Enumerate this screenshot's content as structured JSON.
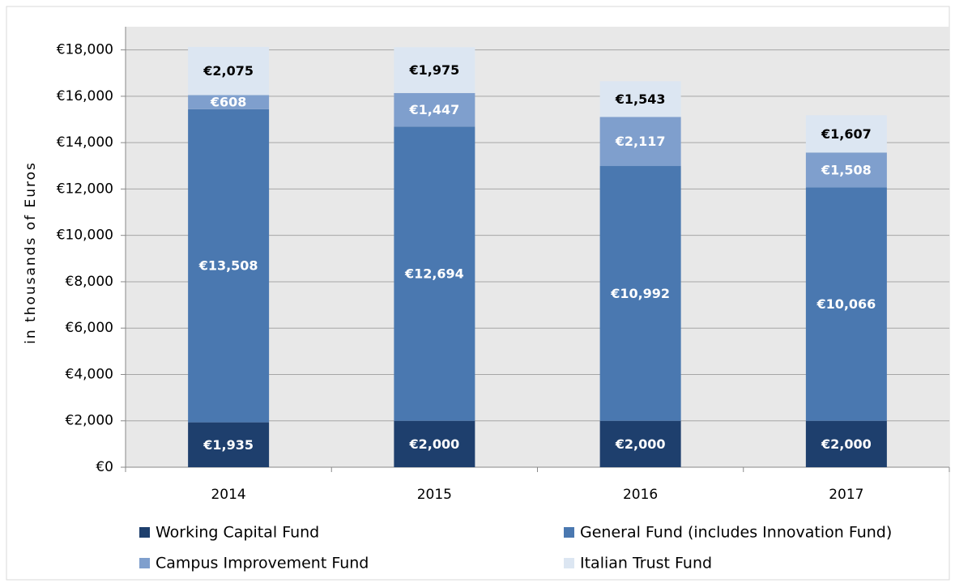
{
  "chart_data": {
    "type": "stacked_bar",
    "y_label": "in thousands of Euros",
    "categories": [
      "2014",
      "2015",
      "2016",
      "2017"
    ],
    "series": [
      {
        "name": "Working Capital Fund",
        "color": "#1e3f6d",
        "label_color": "#ffffff",
        "values": [
          1935,
          2000,
          2000,
          2000
        ],
        "value_labels": [
          "€1,935",
          "€2,000",
          "€2,000",
          "€2,000"
        ]
      },
      {
        "name": "General Fund (includes Innovation Fund)",
        "color": "#4a78b0",
        "label_color": "#ffffff",
        "values": [
          13508,
          12694,
          10992,
          10066
        ],
        "value_labels": [
          "€13,508",
          "€12,694",
          "€10,992",
          "€10,066"
        ]
      },
      {
        "name": "Campus Improvement Fund",
        "color": "#7f9fcd",
        "label_color": "#ffffff",
        "values": [
          608,
          1447,
          2117,
          1508
        ],
        "value_labels": [
          "€608",
          "€1,447",
          "€2,117",
          "€1,508"
        ]
      },
      {
        "name": "Italian Trust Fund",
        "color": "#dce6f2",
        "label_color": "#000000",
        "values": [
          2075,
          1975,
          1543,
          1607
        ],
        "value_labels": [
          "€2,075",
          "€1,975",
          "€1,543",
          "€1,607"
        ]
      }
    ],
    "ylim": [
      0,
      19000
    ],
    "yticks": [
      {
        "value": 0,
        "label": "€0"
      },
      {
        "value": 2000,
        "label": "€2,000"
      },
      {
        "value": 4000,
        "label": "€4,000"
      },
      {
        "value": 6000,
        "label": "€6,000"
      },
      {
        "value": 8000,
        "label": "€8,000"
      },
      {
        "value": 10000,
        "label": "€10,000"
      },
      {
        "value": 12000,
        "label": "€12,000"
      },
      {
        "value": 14000,
        "label": "€14,000"
      },
      {
        "value": 16000,
        "label": "€16,000"
      },
      {
        "value": 18000,
        "label": "€18,000"
      }
    ],
    "grid": true
  }
}
